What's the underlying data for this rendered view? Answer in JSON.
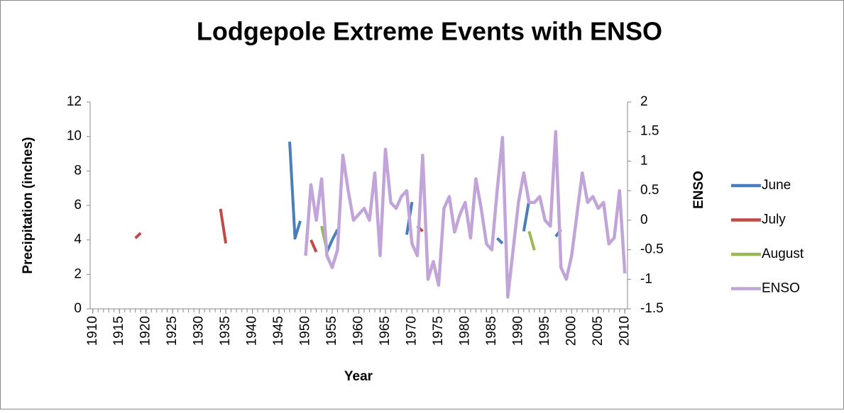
{
  "chart_data": {
    "type": "line",
    "title": "Lodgepole Extreme Events with ENSO",
    "xlabel": "Year",
    "ylabel": "Precipitation (inches)",
    "y2label": "ENSO",
    "x": [
      1910,
      1911,
      1912,
      1913,
      1914,
      1915,
      1916,
      1917,
      1918,
      1919,
      1920,
      1921,
      1922,
      1923,
      1924,
      1925,
      1926,
      1927,
      1928,
      1929,
      1930,
      1931,
      1932,
      1933,
      1934,
      1935,
      1936,
      1937,
      1938,
      1939,
      1940,
      1941,
      1942,
      1943,
      1944,
      1945,
      1946,
      1947,
      1948,
      1949,
      1950,
      1951,
      1952,
      1953,
      1954,
      1955,
      1956,
      1957,
      1958,
      1959,
      1960,
      1961,
      1962,
      1963,
      1964,
      1965,
      1966,
      1967,
      1968,
      1969,
      1970,
      1971,
      1972,
      1973,
      1974,
      1975,
      1976,
      1977,
      1978,
      1979,
      1980,
      1981,
      1982,
      1983,
      1984,
      1985,
      1986,
      1987,
      1988,
      1989,
      1990,
      1991,
      1992,
      1993,
      1994,
      1995,
      1996,
      1997,
      1998,
      1999,
      2000,
      2001,
      2002,
      2003,
      2004,
      2005,
      2006,
      2007,
      2008,
      2009,
      2010
    ],
    "xlim": [
      1909.5,
      2010.5
    ],
    "xticks": [
      1910,
      1915,
      1920,
      1925,
      1930,
      1935,
      1940,
      1945,
      1950,
      1955,
      1960,
      1965,
      1970,
      1975,
      1980,
      1985,
      1990,
      1995,
      2000,
      2005,
      2010
    ],
    "ylim": [
      0,
      12
    ],
    "yticks": [
      0,
      2,
      4,
      6,
      8,
      10,
      12
    ],
    "y2lim": [
      -1.5,
      2
    ],
    "y2ticks": [
      -1.5,
      -1,
      -0.5,
      0,
      0.5,
      1,
      1.5,
      2
    ],
    "grid": false,
    "legend": "right",
    "series": [
      {
        "name": "June",
        "color": "#4a7ebb",
        "values": [
          null,
          null,
          null,
          null,
          null,
          null,
          null,
          null,
          null,
          null,
          null,
          null,
          null,
          null,
          null,
          null,
          null,
          null,
          null,
          null,
          null,
          null,
          null,
          null,
          null,
          null,
          null,
          null,
          null,
          null,
          null,
          null,
          null,
          null,
          null,
          null,
          null,
          9.7,
          4.1,
          5.1,
          null,
          null,
          null,
          null,
          3.3,
          4.0,
          4.6,
          null,
          null,
          null,
          null,
          null,
          null,
          null,
          null,
          null,
          null,
          null,
          null,
          4.3,
          6.2,
          null,
          null,
          null,
          null,
          null,
          null,
          null,
          null,
          null,
          null,
          null,
          null,
          null,
          null,
          null,
          4.1,
          3.8,
          null,
          null,
          null,
          4.5,
          6.3,
          null,
          null,
          null,
          null,
          4.2,
          4.6,
          null,
          null,
          null,
          null,
          null,
          null,
          null,
          null,
          null,
          null,
          null,
          null
        ]
      },
      {
        "name": "July",
        "color": "#be4b48",
        "values": [
          null,
          null,
          null,
          null,
          null,
          null,
          null,
          null,
          4.1,
          4.4,
          null,
          null,
          null,
          null,
          null,
          null,
          null,
          null,
          null,
          null,
          null,
          null,
          null,
          null,
          5.8,
          3.8,
          null,
          null,
          null,
          null,
          null,
          null,
          null,
          null,
          null,
          null,
          null,
          null,
          null,
          null,
          null,
          4.0,
          3.3,
          null,
          null,
          null,
          null,
          null,
          null,
          null,
          null,
          null,
          null,
          null,
          null,
          null,
          null,
          null,
          null,
          null,
          null,
          4.8,
          4.5,
          null,
          null,
          null,
          null,
          null,
          null,
          null,
          null,
          null,
          null,
          null,
          null,
          null,
          null,
          null,
          null,
          null,
          null,
          null,
          null,
          null,
          null,
          null,
          null,
          null,
          null,
          null,
          null,
          null,
          null,
          null,
          null,
          null,
          null,
          null,
          null,
          null,
          null
        ]
      },
      {
        "name": "August",
        "color": "#98b954",
        "values": [
          null,
          null,
          null,
          null,
          null,
          null,
          null,
          null,
          null,
          null,
          null,
          null,
          null,
          null,
          null,
          null,
          null,
          null,
          null,
          null,
          null,
          null,
          null,
          null,
          null,
          null,
          null,
          null,
          null,
          null,
          null,
          null,
          null,
          null,
          null,
          null,
          null,
          null,
          null,
          null,
          null,
          null,
          null,
          4.8,
          3.4,
          null,
          null,
          null,
          null,
          null,
          null,
          null,
          null,
          null,
          null,
          null,
          null,
          null,
          null,
          null,
          null,
          null,
          null,
          null,
          null,
          null,
          null,
          null,
          null,
          null,
          null,
          null,
          null,
          null,
          null,
          null,
          null,
          null,
          null,
          null,
          null,
          null,
          4.5,
          3.4,
          null,
          null,
          null,
          null,
          null,
          null,
          null,
          null,
          null,
          null,
          null,
          null,
          null,
          null,
          null,
          null,
          null
        ]
      },
      {
        "name": "ENSO",
        "color": "#c2a5d8",
        "axis": "y2",
        "values": [
          null,
          null,
          null,
          null,
          null,
          null,
          null,
          null,
          null,
          null,
          null,
          null,
          null,
          null,
          null,
          null,
          null,
          null,
          null,
          null,
          null,
          null,
          null,
          null,
          null,
          null,
          null,
          null,
          null,
          null,
          null,
          null,
          null,
          null,
          null,
          null,
          null,
          null,
          null,
          null,
          -0.6,
          0.6,
          0.0,
          0.7,
          -0.6,
          -0.8,
          -0.5,
          1.1,
          0.5,
          0.0,
          0.1,
          0.2,
          0.0,
          0.8,
          -0.6,
          1.2,
          0.3,
          0.2,
          0.4,
          0.5,
          -0.4,
          -0.6,
          1.1,
          -1.0,
          -0.7,
          -1.1,
          0.2,
          0.4,
          -0.2,
          0.1,
          0.3,
          -0.3,
          0.7,
          0.2,
          -0.4,
          -0.5,
          0.5,
          1.4,
          -1.3,
          -0.5,
          0.3,
          0.8,
          0.3,
          0.3,
          0.4,
          0.0,
          -0.1,
          1.5,
          -0.8,
          -1.0,
          -0.6,
          0.1,
          0.8,
          0.3,
          0.4,
          0.2,
          0.3,
          -0.4,
          -0.3,
          0.5,
          -0.9
        ]
      }
    ]
  }
}
